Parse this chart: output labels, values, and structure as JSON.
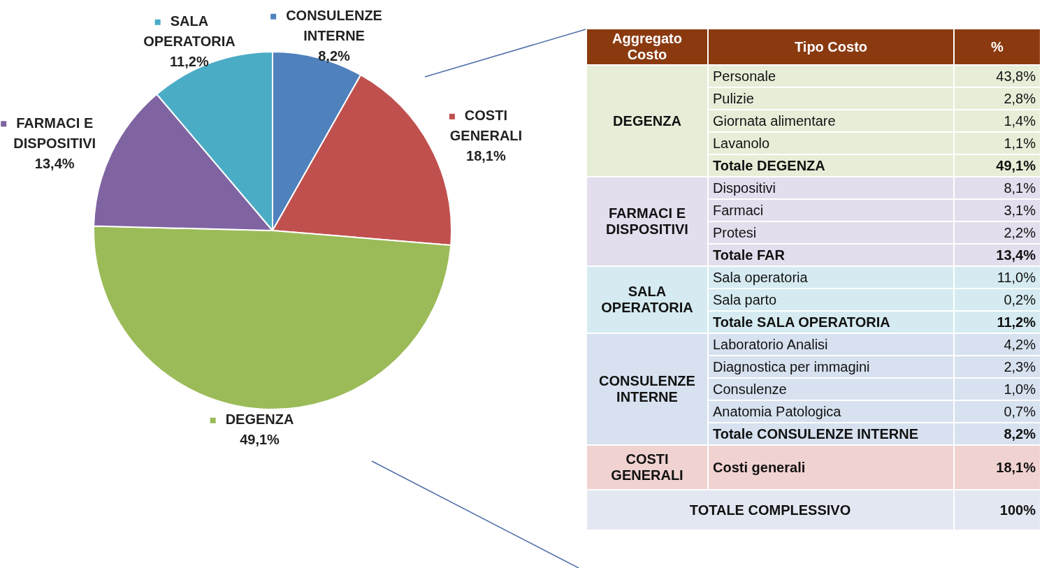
{
  "chart_data": [
    {
      "type": "pie",
      "categories": [
        "CONSULENZE INTERNE",
        "COSTI GENERALI",
        "DEGENZA",
        "FARMACI E DISPOSITIVI",
        "SALA OPERATORIA"
      ],
      "values": [
        8.2,
        18.1,
        49.1,
        13.4,
        11.2
      ],
      "value_labels": [
        "8,2%",
        "18,1%",
        "49,1%",
        "13,4%",
        "11,2%"
      ],
      "colors": [
        "#4f81bd",
        "#c0504d",
        "#9bbb59",
        "#8064a2",
        "#4bacc6"
      ],
      "legend": true
    },
    {
      "type": "other",
      "color": "#8b3a10",
      "categories": [
        "Personale",
        "Pulizie",
        "Giornata alimentare",
        "Lavanolo",
        "Totale DEGENZA",
        "Dispositivi",
        "Farmaci",
        "Protesi",
        "Totale FAR",
        "Sala operatoria",
        "Sala parto",
        "Totale SALA OPERATORIA",
        "Laboratorio Analisi",
        "Diagnostica per immagini",
        "Consulenze",
        "Anatomia Patologica",
        "Totale CONSULENZE INTERNE",
        "Costi generali",
        "TOTALE COMPLESSIVO"
      ],
      "values": [
        43.8,
        2.8,
        1.4,
        1.1,
        49.1,
        8.1,
        3.1,
        2.2,
        13.4,
        11.0,
        0.2,
        11.2,
        4.2,
        2.3,
        1.0,
        0.7,
        8.2,
        18.1,
        100
      ],
      "value_labels": [
        "43,8%",
        "2,8%",
        "1,4%",
        "1,1%",
        "49,1%",
        "8,1%",
        "3,1%",
        "2,2%",
        "13,4%",
        "11,0%",
        "0,2%",
        "11,2%",
        "4,2%",
        "2,3%",
        "1,0%",
        "0,7%",
        "8,2%",
        "18,1%",
        "100%"
      ],
      "colors": [
        "#e7eed8",
        "#e7eed8",
        "#e7eed8",
        "#e7eed8",
        "#e7eed8",
        "#e3dded",
        "#e3dded",
        "#e3dded",
        "#e3dded",
        "#d5ebf1",
        "#d5ebf1",
        "#d5ebf1",
        "#d7e1ef",
        "#d7e1ef",
        "#d7e1ef",
        "#d7e1ef",
        "#d7e1ef",
        "#f0d2d1",
        "#e3e7f1"
      ],
      "annotations": [
        "Aggregato Costo",
        "Tipo Costo",
        "%",
        {
          "text": "DEGENZA",
          "x": "Personale"
        },
        {
          "text": "FARMACI E DISPOSITIVI",
          "x": "Dispositivi"
        },
        {
          "text": "SALA OPERATORIA",
          "x": "Sala operatoria"
        },
        {
          "text": "CONSULENZE INTERNE",
          "x": "Laboratorio Analisi"
        },
        {
          "text": "COSTI GENERALI",
          "x": "Costi generali"
        }
      ]
    }
  ]
}
